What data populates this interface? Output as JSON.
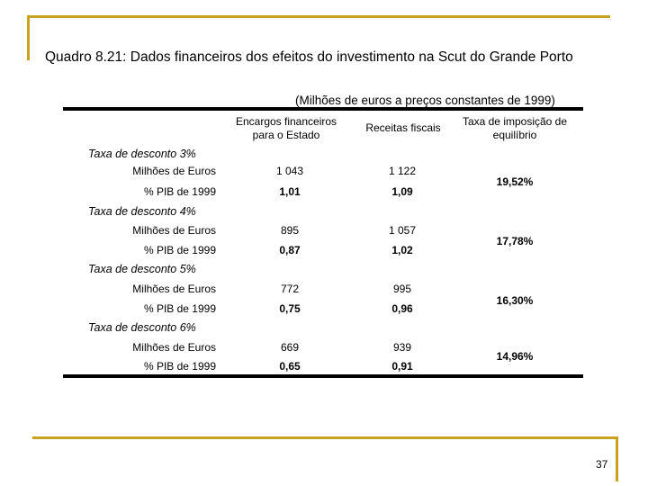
{
  "title": "Quadro 8.21: Dados financeiros dos efeitos do investimento na Scut do Grande Porto",
  "subtitle": "(Milhões de euros a preços constantes de 1999)",
  "headers": {
    "encargos_l1": "Encargos financeiros",
    "encargos_l2": "para o Estado",
    "receitas": "Receitas fiscais",
    "taxa_l1": "Taxa de imposição de",
    "taxa_l2": "equilíbrio"
  },
  "groups": [
    {
      "label": "Taxa de desconto 3%",
      "row1_label": "Milhões de Euros",
      "row2_label": "% PIB de 1999",
      "enc_m": "1 043",
      "rec_m": "1 122",
      "enc_p": "1,01",
      "rec_p": "1,09",
      "rate": "19,52%"
    },
    {
      "label": "Taxa de desconto 4%",
      "row1_label": "Milhões de Euros",
      "row2_label": "% PIB de 1999",
      "enc_m": "895",
      "rec_m": "1 057",
      "enc_p": "0,87",
      "rec_p": "1,02",
      "rate": "17,78%"
    },
    {
      "label": "Taxa de desconto 5%",
      "row1_label": "Milhões de Euros",
      "row2_label": "% PIB de 1999",
      "enc_m": "772",
      "rec_m": "995",
      "enc_p": "0,75",
      "rec_p": "0,96",
      "rate": "16,30%"
    },
    {
      "label": "Taxa de desconto 6%",
      "row1_label": "Milhões de Euros",
      "row2_label": "% PIB de 1999",
      "enc_m": "669",
      "rec_m": "939",
      "enc_p": "0,65",
      "rec_p": "0,91",
      "rate": "14,96%"
    }
  ],
  "page_number": "37",
  "accent_color": "#c9a21f"
}
